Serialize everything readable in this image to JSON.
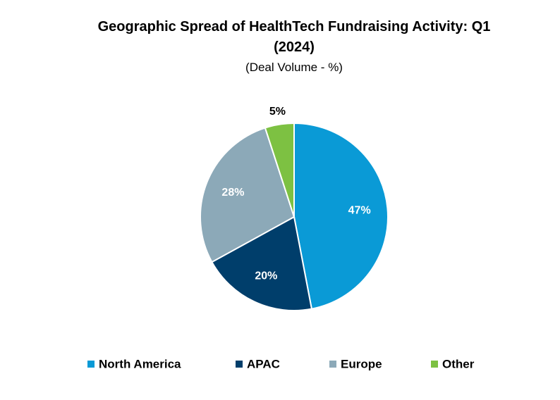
{
  "chart_data": {
    "type": "pie",
    "title": "Geographic Spread of HealthTech Fundraising Activity: Q1 (2024)",
    "subtitle": "(Deal Volume - %)",
    "categories": [
      "North America",
      "APAC",
      "Europe",
      "Other"
    ],
    "values": [
      47,
      20,
      28,
      5
    ],
    "value_labels": [
      "47%",
      "20%",
      "28%",
      "5%"
    ],
    "colors": [
      "#0a9ad6",
      "#003e6b",
      "#8ca9b8",
      "#7dc142"
    ],
    "legend": "bottom"
  }
}
